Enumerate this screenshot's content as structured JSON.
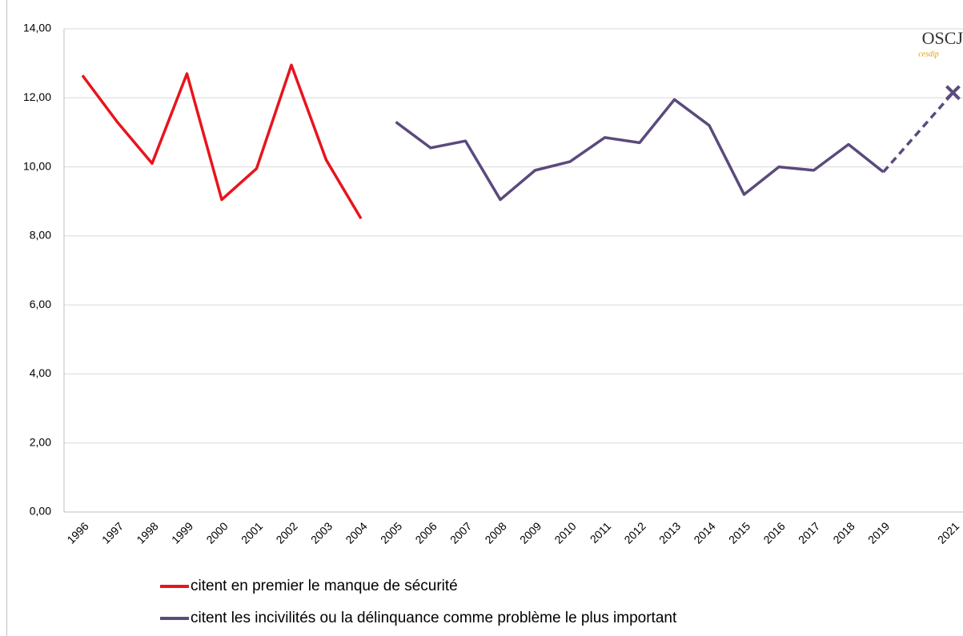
{
  "chart_data": {
    "type": "line",
    "categories": [
      "1996",
      "1997",
      "1998",
      "1999",
      "2000",
      "2001",
      "2002",
      "2003",
      "2004",
      "2005",
      "2006",
      "2007",
      "2008",
      "2009",
      "2010",
      "2011",
      "2012",
      "2013",
      "2014",
      "2015",
      "2016",
      "2017",
      "2018",
      "2019",
      null,
      "2021"
    ],
    "series": [
      {
        "name": "citent en premier le manque de sécurité",
        "color": "#e8141c",
        "values": [
          12.65,
          11.3,
          10.1,
          12.7,
          9.05,
          9.95,
          12.95,
          10.2,
          8.5,
          null,
          null,
          null,
          null,
          null,
          null,
          null,
          null,
          null,
          null,
          null,
          null,
          null,
          null,
          null,
          null,
          null
        ]
      },
      {
        "name": "citent les incivilités ou la délinquance comme problème le plus important",
        "color": "#5b4a7c",
        "values": [
          null,
          null,
          null,
          null,
          null,
          null,
          null,
          null,
          null,
          11.3,
          10.55,
          10.75,
          9.05,
          9.9,
          10.15,
          10.85,
          10.7,
          11.95,
          11.2,
          9.2,
          10.0,
          9.9,
          10.65,
          9.85,
          null,
          12.15
        ],
        "gap_style": "dashed",
        "last_marker": "x"
      }
    ],
    "ylim": [
      0,
      14
    ],
    "yticks": [
      {
        "value": 0,
        "label": "0,00"
      },
      {
        "value": 2,
        "label": "2,00"
      },
      {
        "value": 4,
        "label": "4,00"
      },
      {
        "value": 6,
        "label": "6,00"
      },
      {
        "value": 8,
        "label": "8,00"
      },
      {
        "value": 10,
        "label": "10,00"
      },
      {
        "value": 12,
        "label": "12,00"
      },
      {
        "value": 14,
        "label": "14,00"
      }
    ],
    "grid": true,
    "logo": {
      "text": "OSCJ",
      "sub": "cesdip"
    }
  }
}
